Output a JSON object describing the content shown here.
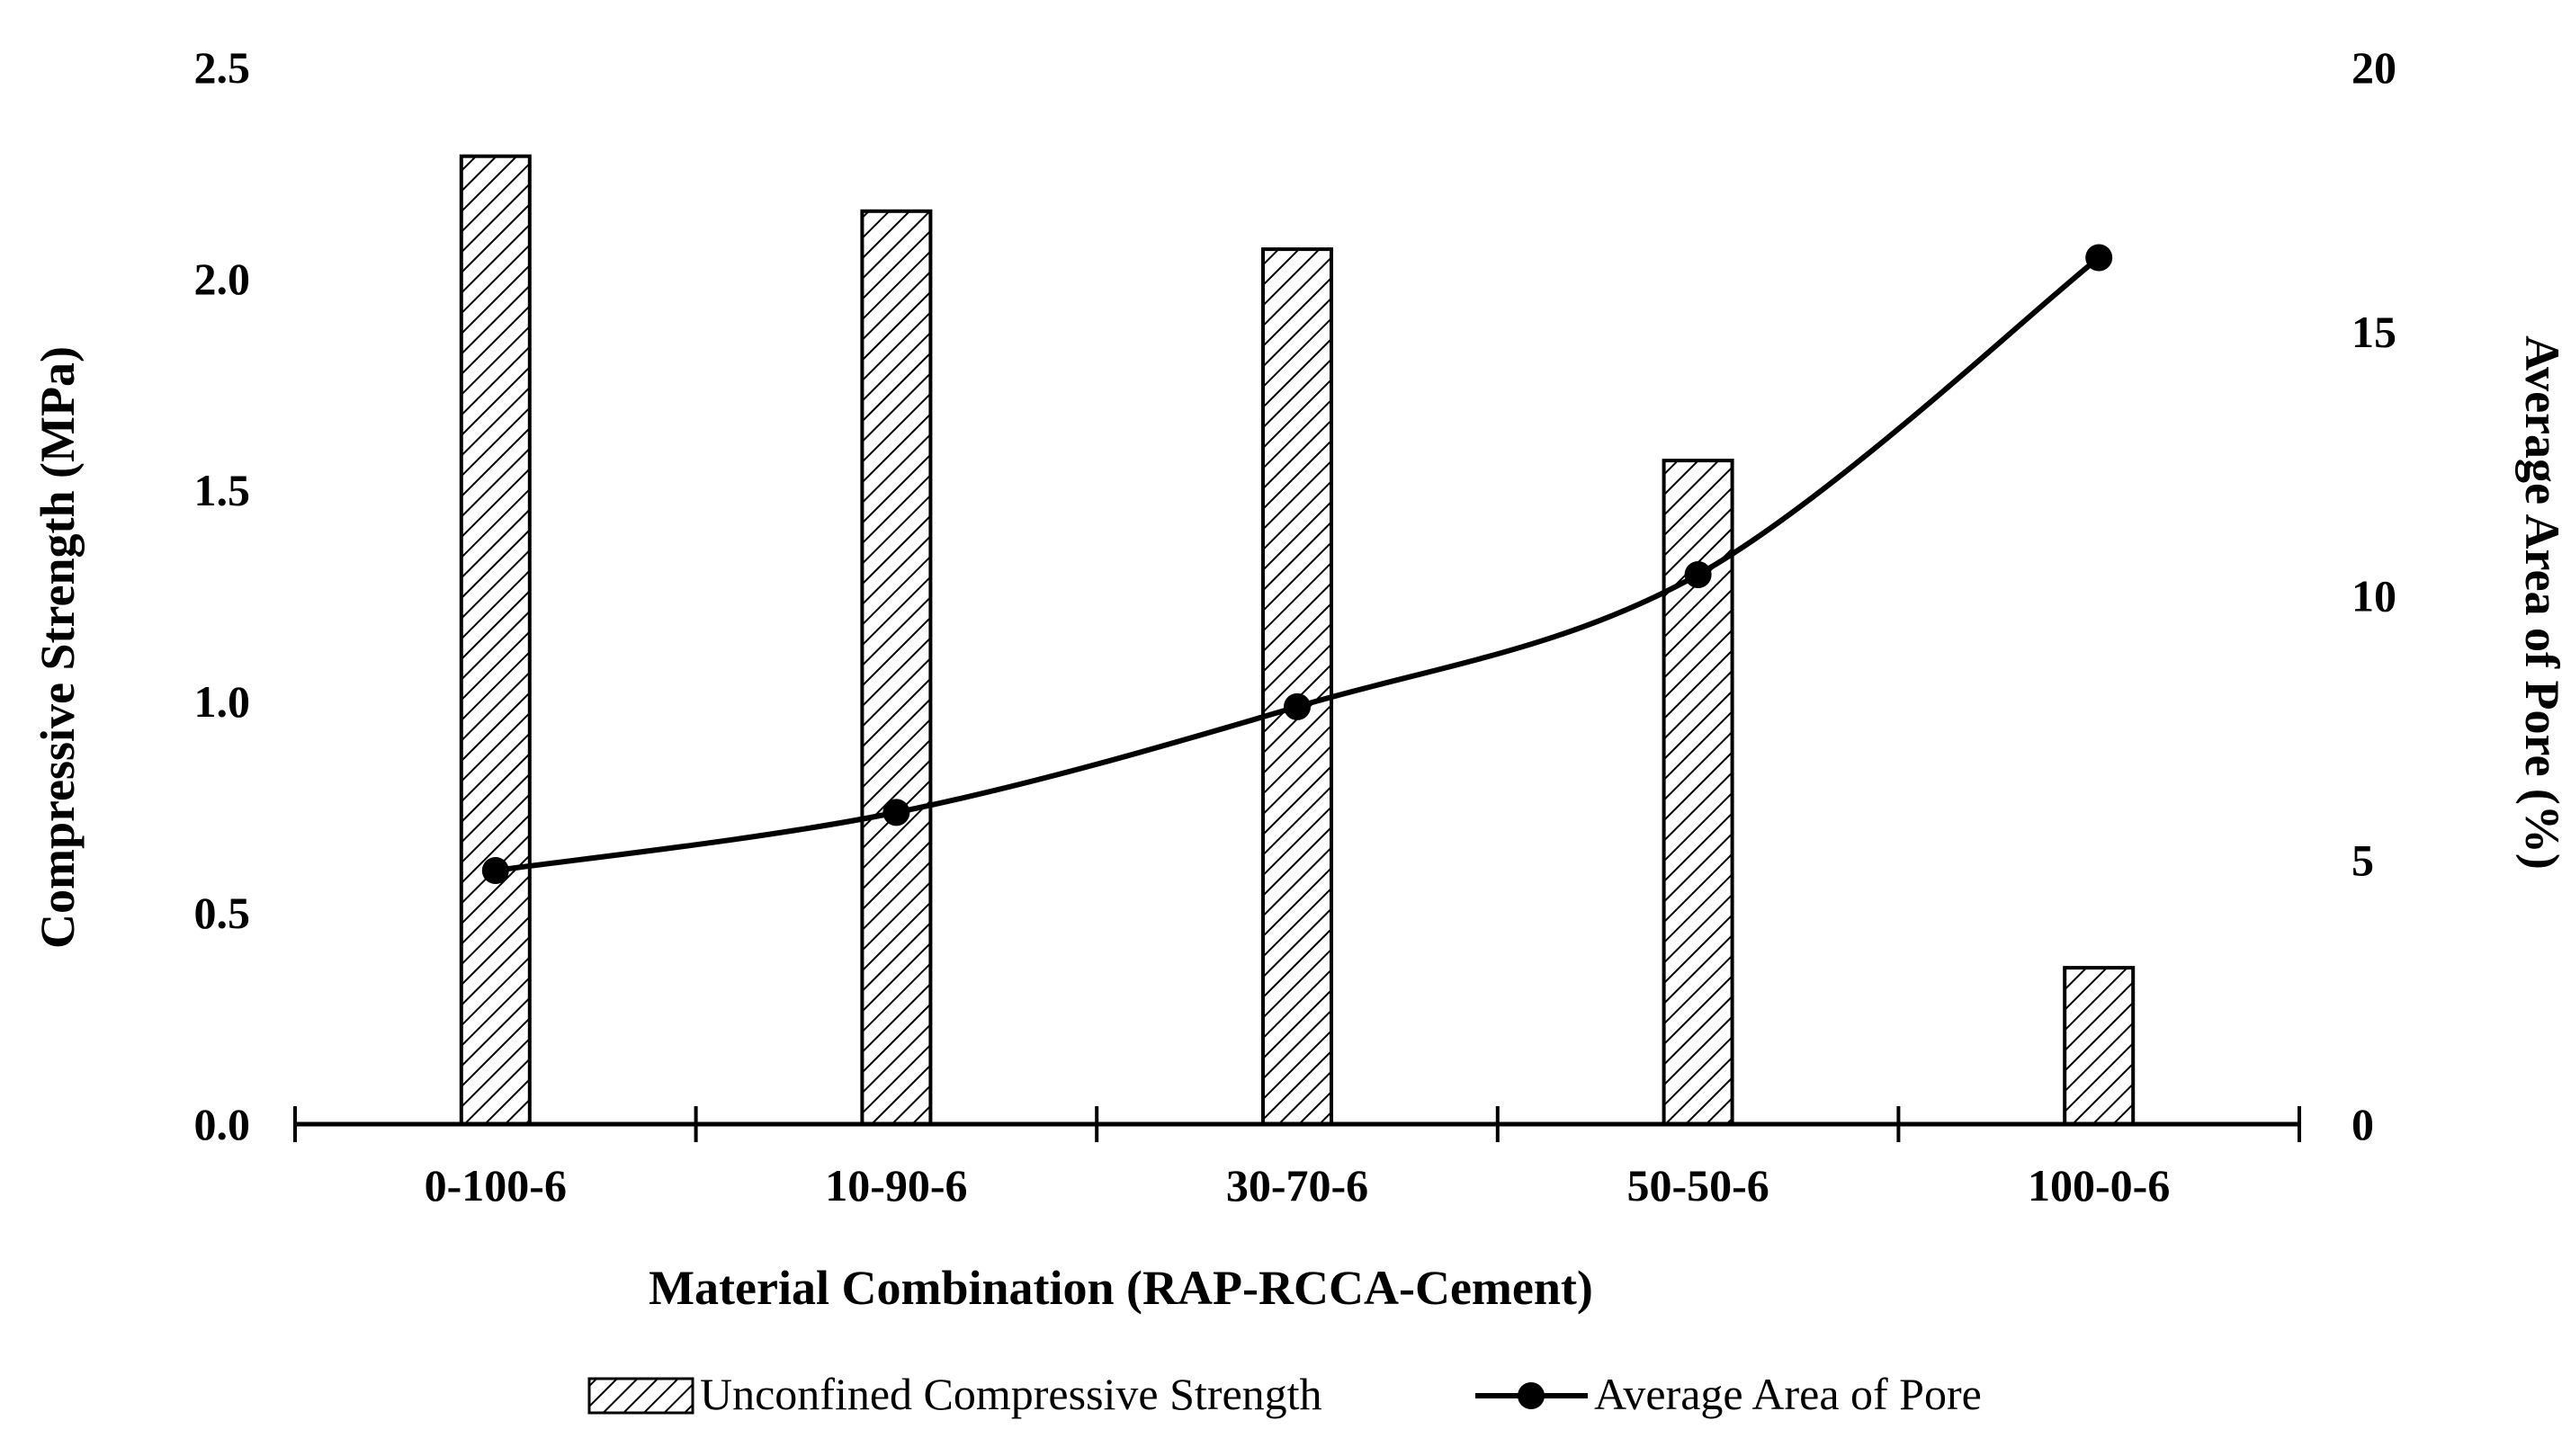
{
  "chart_data": {
    "type": "bar+line",
    "categories": [
      "0-100-6",
      "10-90-6",
      "30-70-6",
      "50-50-6",
      "100-0-6"
    ],
    "series": [
      {
        "name": "Unconfined Compressive Strength",
        "type": "bar",
        "axis": "left",
        "pattern": "diagonal-hatch",
        "values": [
          2.29,
          2.16,
          2.07,
          1.57,
          0.37
        ]
      },
      {
        "name": "Average Area of Pore",
        "type": "line",
        "axis": "right",
        "marker": "circle",
        "smooth": true,
        "values": [
          4.8,
          5.9,
          7.9,
          10.4,
          16.4
        ]
      }
    ],
    "xlabel": "Material Combination (RAP-RCCA-Cement)",
    "ylabel_left": "Compressive Strength (MPa)",
    "ylabel_right": "Average Area of Pore (%)",
    "ylim_left": [
      0,
      2.5
    ],
    "ylim_right": [
      0,
      20
    ],
    "yticks_left": [
      "0.0",
      "0.5",
      "1.0",
      "1.5",
      "2.0",
      "2.5"
    ],
    "yticks_right": [
      "0",
      "5",
      "10",
      "15",
      "20"
    ],
    "legend_position": "bottom-center",
    "grid": false
  },
  "colors": {
    "ink": "#000000",
    "background": "#ffffff"
  }
}
